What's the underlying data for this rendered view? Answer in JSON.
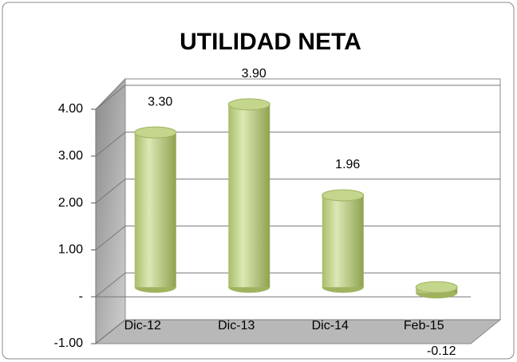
{
  "chart_data": {
    "type": "bar",
    "title": "UTILIDAD NETA",
    "categories": [
      "Dic-12",
      "Dic-13",
      "Dic-14",
      "Feb-15"
    ],
    "values": [
      3.3,
      3.9,
      1.96,
      -0.12
    ],
    "value_labels": [
      "3.30",
      "3.90",
      "1.96",
      "-0.12"
    ],
    "color": "#c3d68c",
    "ylim": [
      -1,
      4
    ],
    "yticks": [
      {
        "value": -1,
        "label": "-1.00"
      },
      {
        "value": 0,
        "label": "-"
      },
      {
        "value": 1,
        "label": "1.00"
      },
      {
        "value": 2,
        "label": "2.00"
      },
      {
        "value": 3,
        "label": "3.00"
      },
      {
        "value": 4,
        "label": "4.00"
      }
    ],
    "grid": true
  }
}
